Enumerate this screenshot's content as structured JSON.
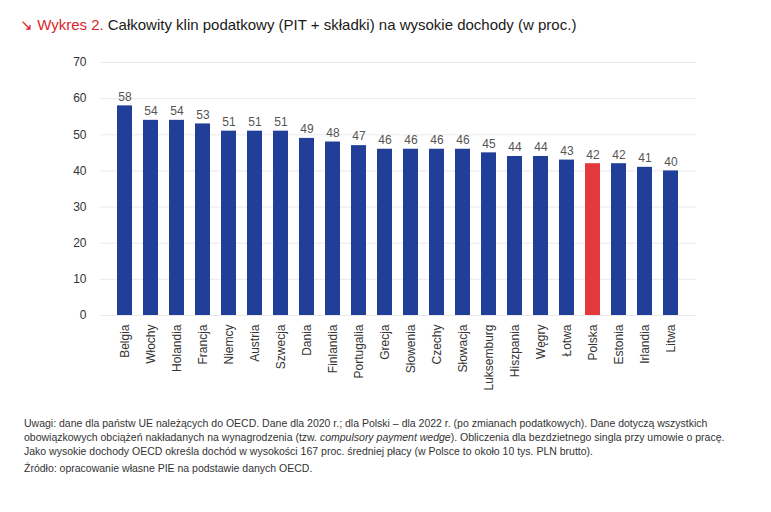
{
  "chart_data": {
    "type": "bar",
    "figure_label": "↘ Wykres 2.",
    "title": "Całkowity klin podatkowy (PIT + składki) na wysokie dochody (w proc.)",
    "categories": [
      "Belgia",
      "Włochy",
      "Holandia",
      "Francja",
      "Niemcy",
      "Austria",
      "Szwecja",
      "Dania",
      "Finlandia",
      "Portugalia",
      "Grecja",
      "Słowenia",
      "Czechy",
      "Słowacja",
      "Luksemburg",
      "Hiszpania",
      "Węgry",
      "Łotwa",
      "Polska",
      "Estonia",
      "Irlandia",
      "Litwa"
    ],
    "values": [
      58,
      54,
      54,
      53,
      51,
      51,
      51,
      49,
      48,
      47,
      46,
      46,
      46,
      46,
      45,
      44,
      44,
      43,
      42,
      42,
      41,
      40
    ],
    "colors": [
      "#213f99",
      "#213f99",
      "#213f99",
      "#213f99",
      "#213f99",
      "#213f99",
      "#213f99",
      "#213f99",
      "#213f99",
      "#213f99",
      "#213f99",
      "#213f99",
      "#213f99",
      "#213f99",
      "#213f99",
      "#213f99",
      "#213f99",
      "#213f99",
      "#e5383d",
      "#213f99",
      "#213f99",
      "#213f99"
    ],
    "ylim": [
      0,
      70
    ],
    "yticks": [
      0,
      10,
      20,
      30,
      40,
      50,
      60,
      70
    ],
    "grid": true,
    "data_labels": true,
    "notes": [
      "Uwagi: dane dla państw UE należących do OECD. Dane dla 2020 r.; dla Polski – dla 2022 r. (po zmianach podatkowych). Dane dotyczą wszystkich obowiązkowych obciążeń nakładanych na wynagrodzenia (tzw. ",
      "compulsory payment wedge",
      "). Obliczenia dla bezdzietnego singla przy umowie o pracę. Jako wysokie dochody OECD określa dochód w wysokości 167 proc. średniej płacy (w Polsce to około 10 tys. PLN brutto)."
    ],
    "source": "Źródło: opracowanie własne PIE na podstawie danych OECD."
  }
}
